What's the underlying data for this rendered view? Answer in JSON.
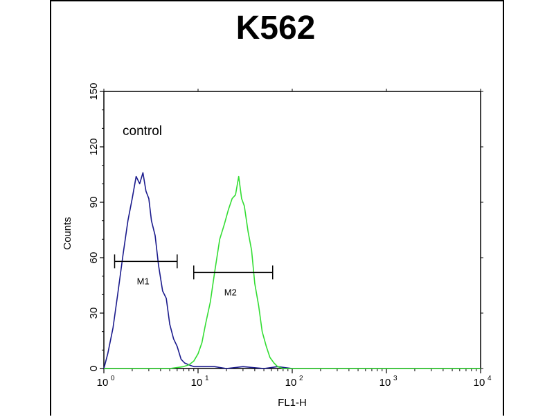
{
  "chart_data": {
    "type": "line",
    "title": "K562",
    "xlabel": "FL1-H",
    "ylabel": "Counts",
    "x_scale": "log",
    "xlim": [
      1,
      10000
    ],
    "ylim": [
      0,
      150
    ],
    "x_ticks": [
      {
        "base": "10",
        "exp": "0"
      },
      {
        "base": "10",
        "exp": "1"
      },
      {
        "base": "10",
        "exp": "2"
      },
      {
        "base": "10",
        "exp": "3"
      },
      {
        "base": "10",
        "exp": "4"
      }
    ],
    "y_ticks": [
      "0",
      "30",
      "60",
      "90",
      "120",
      "150"
    ],
    "annotation": "control",
    "series": [
      {
        "color": "#1a1a8c",
        "x": [
          1,
          1.1,
          1.25,
          1.4,
          1.6,
          1.8,
          2.0,
          2.2,
          2.4,
          2.6,
          2.8,
          3.0,
          3.2,
          3.5,
          3.8,
          4.2,
          4.6,
          5.0,
          5.5,
          6.0,
          6.6,
          7.2,
          8,
          9,
          10,
          12,
          15,
          20,
          30,
          50,
          70,
          100
        ],
        "y": [
          0,
          8,
          22,
          40,
          62,
          80,
          92,
          104,
          100,
          106,
          96,
          92,
          80,
          72,
          56,
          42,
          38,
          24,
          16,
          12,
          5,
          3,
          2,
          1,
          1,
          1,
          1,
          0,
          1,
          0,
          1,
          0
        ]
      },
      {
        "color": "#33dd33",
        "x": [
          1,
          5,
          7,
          8,
          9,
          10,
          11,
          12,
          13.5,
          15,
          17,
          19,
          21,
          23,
          25,
          27,
          29,
          31,
          34,
          37,
          40,
          44,
          48,
          53,
          58,
          64,
          70,
          80,
          100,
          1000,
          10000
        ],
        "y": [
          0,
          0,
          1,
          2,
          4,
          8,
          14,
          24,
          36,
          52,
          70,
          78,
          86,
          92,
          94,
          104,
          92,
          88,
          74,
          64,
          46,
          34,
          20,
          12,
          6,
          3,
          1,
          0,
          0,
          0,
          0
        ]
      }
    ],
    "gates": [
      {
        "label": "M1",
        "x_range": [
          1.3,
          6.0
        ],
        "y": 58
      },
      {
        "label": "M2",
        "x_range": [
          9,
          62
        ],
        "y": 52
      }
    ]
  }
}
